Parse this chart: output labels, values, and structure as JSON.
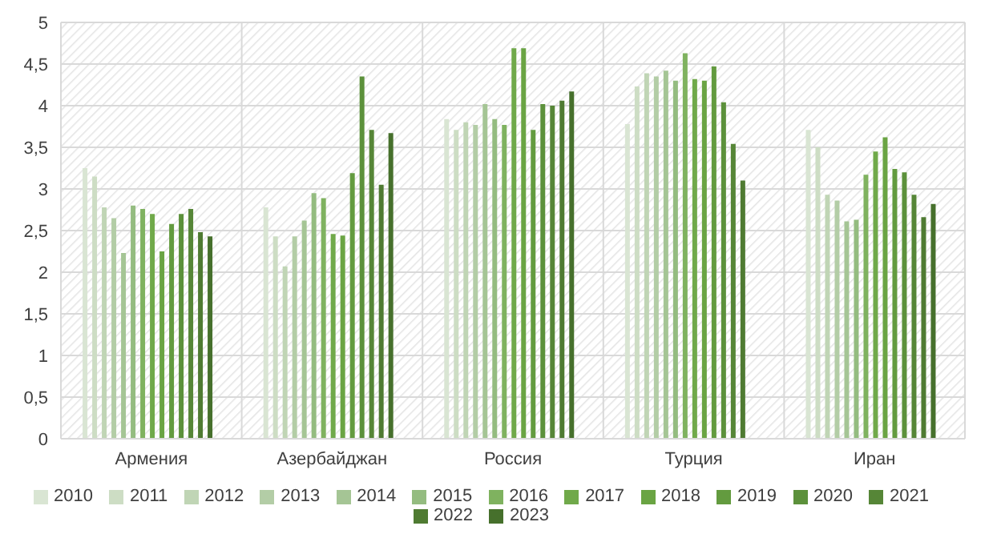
{
  "chart_data": {
    "type": "bar",
    "categories": [
      "Армения",
      "Азербайджан",
      "Россия",
      "Турция",
      "Иран"
    ],
    "series": [
      {
        "name": "2010",
        "color": "#d9e5d3",
        "values": [
          3.25,
          2.78,
          3.84,
          3.78,
          3.71
        ]
      },
      {
        "name": "2011",
        "color": "#cdddc4",
        "values": [
          3.15,
          2.43,
          3.71,
          4.23,
          3.5
        ]
      },
      {
        "name": "2012",
        "color": "#c0d5b5",
        "values": [
          2.78,
          2.07,
          3.8,
          4.39,
          2.93
        ]
      },
      {
        "name": "2013",
        "color": "#b3cda6",
        "values": [
          2.65,
          2.43,
          3.77,
          4.35,
          2.86
        ]
      },
      {
        "name": "2014",
        "color": "#a5c595",
        "values": [
          2.23,
          2.62,
          4.02,
          4.42,
          2.61
        ]
      },
      {
        "name": "2015",
        "color": "#94bc80",
        "values": [
          2.8,
          2.95,
          3.84,
          4.3,
          2.63
        ]
      },
      {
        "name": "2016",
        "color": "#7fb25f",
        "values": [
          2.76,
          2.89,
          3.77,
          4.63,
          3.17
        ]
      },
      {
        "name": "2017",
        "color": "#70a94a",
        "values": [
          2.7,
          2.46,
          4.69,
          4.32,
          3.45
        ]
      },
      {
        "name": "2018",
        "color": "#6aa443",
        "values": [
          2.25,
          2.44,
          4.69,
          4.3,
          3.62
        ]
      },
      {
        "name": "2019",
        "color": "#639b3f",
        "values": [
          2.58,
          3.19,
          3.71,
          4.47,
          3.24
        ]
      },
      {
        "name": "2020",
        "color": "#5c913b",
        "values": [
          2.7,
          4.35,
          4.02,
          4.04,
          3.2
        ]
      },
      {
        "name": "2021",
        "color": "#568637",
        "values": [
          2.76,
          3.71,
          4.0,
          3.54,
          2.93
        ]
      },
      {
        "name": "2022",
        "color": "#4f7b32",
        "values": [
          2.48,
          3.05,
          4.06,
          3.1,
          2.66
        ]
      },
      {
        "name": "2023",
        "color": "#46702c",
        "values": [
          2.43,
          3.67,
          4.17,
          null,
          2.82
        ]
      }
    ],
    "ylim": [
      0,
      5
    ],
    "yticks": [
      0,
      {
        "value": 0.5,
        "label": "0,5"
      },
      1,
      {
        "value": 1.5,
        "label": "1,5"
      },
      2,
      {
        "value": 2.5,
        "label": "2,5"
      },
      3,
      {
        "value": 3.5,
        "label": "3,5"
      },
      4,
      {
        "value": 4.5,
        "label": "4,5"
      },
      5
    ],
    "grid": true,
    "legend": "bottom"
  }
}
